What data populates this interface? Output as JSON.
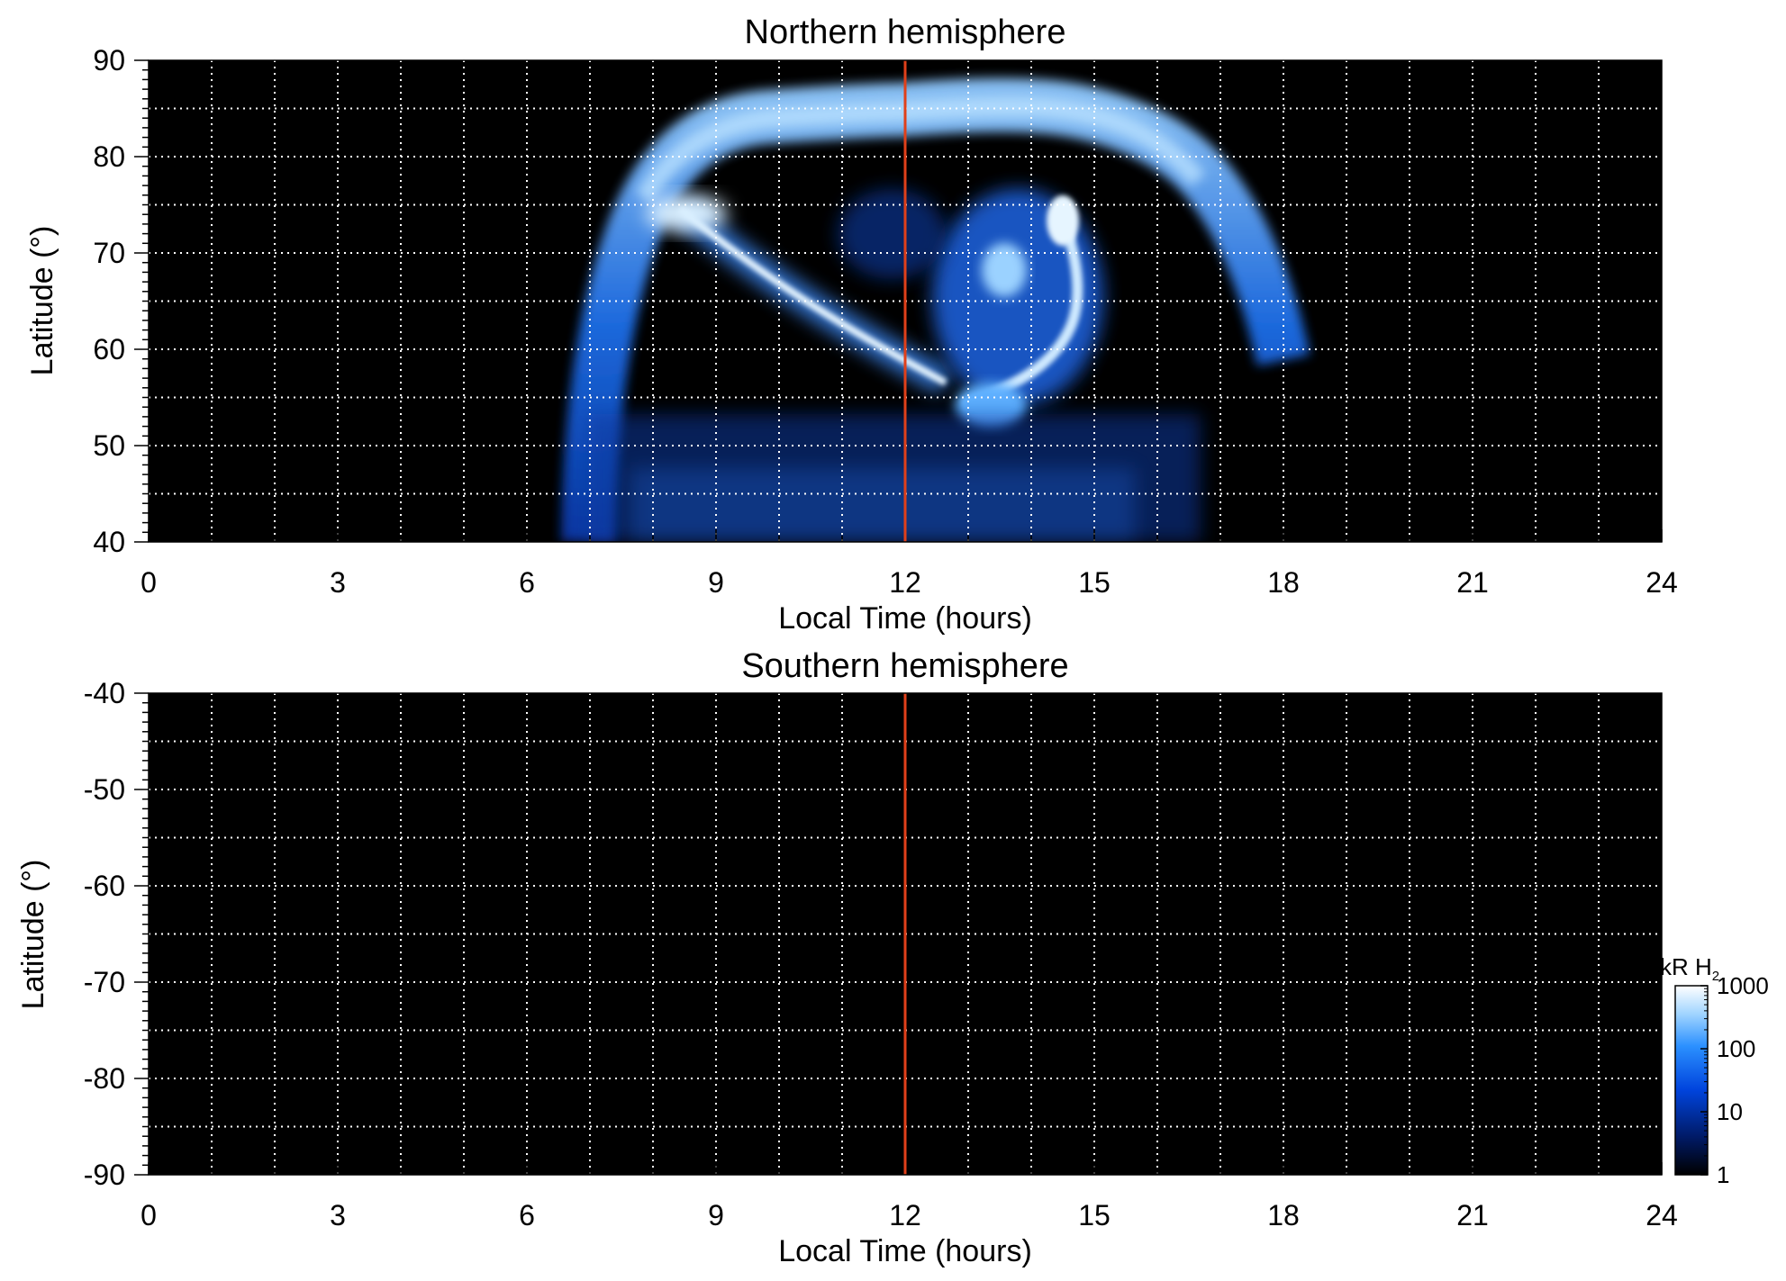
{
  "chart_data": [
    {
      "type": "heatmap",
      "title": "Northern hemisphere",
      "xlabel": "Local Time (hours)",
      "ylabel": "Latitude (°)",
      "xlim": [
        0,
        24
      ],
      "ylim": [
        40,
        90
      ],
      "x_ticks": [
        0,
        3,
        6,
        9,
        12,
        15,
        18,
        21,
        24
      ],
      "y_ticks": [
        40,
        50,
        60,
        70,
        80,
        90
      ],
      "x_gridlines": [
        1,
        2,
        3,
        4,
        5,
        6,
        7,
        8,
        9,
        10,
        11,
        12,
        13,
        14,
        15,
        16,
        17,
        18,
        19,
        20,
        21,
        22,
        23
      ],
      "y_gridlines": [
        45,
        50,
        55,
        60,
        65,
        70,
        75,
        80,
        85
      ],
      "grid": "dotted-white",
      "marker_line": {
        "x": 12,
        "color": "#e0401a"
      },
      "background_color": "#000000",
      "features": [
        {
          "name": "main-oval-arc",
          "kind": "arc",
          "lt_start": 7.2,
          "lt_end": 18.0,
          "lat_top": 85,
          "intensity": "high"
        },
        {
          "name": "dawn-arc",
          "kind": "streak",
          "lt": [
            8.8,
            12.7
          ],
          "lat": [
            73.5,
            56.5
          ],
          "intensity": "very-high"
        },
        {
          "name": "postnoon-spots",
          "kind": "patch",
          "lt_center": 14.0,
          "lat_center": 64,
          "intensity": "high"
        },
        {
          "name": "low-latitude-noise",
          "kind": "noise",
          "lt": [
            7.0,
            16.8
          ],
          "lat": [
            40,
            50
          ],
          "intensity": "low"
        }
      ]
    },
    {
      "type": "heatmap",
      "title": "Southern hemisphere",
      "xlabel": "Local Time (hours)",
      "ylabel": "Latitude (°)",
      "xlim": [
        0,
        24
      ],
      "ylim": [
        -90,
        -40
      ],
      "x_ticks": [
        0,
        3,
        6,
        9,
        12,
        15,
        18,
        21,
        24
      ],
      "y_ticks": [
        -40,
        -50,
        -60,
        -70,
        -80,
        -90
      ],
      "x_gridlines": [
        1,
        2,
        3,
        4,
        5,
        6,
        7,
        8,
        9,
        10,
        11,
        12,
        13,
        14,
        15,
        16,
        17,
        18,
        19,
        20,
        21,
        22,
        23
      ],
      "y_gridlines": [
        -45,
        -50,
        -55,
        -60,
        -65,
        -70,
        -75,
        -80,
        -85
      ],
      "grid": "dotted-white",
      "marker_line": {
        "x": 12,
        "color": "#e0401a"
      },
      "background_color": "#000000",
      "features": []
    }
  ],
  "colorbar": {
    "label": "kR H",
    "label_subscript": "2",
    "scale": "log",
    "ticks": [
      "1",
      "10",
      "100",
      "1000"
    ],
    "tick_values": [
      1,
      10,
      100,
      1000
    ],
    "colors": [
      "#000000",
      "#001a66",
      "#0044dd",
      "#2b90ff",
      "#a0d4ff",
      "#ffffff"
    ]
  }
}
